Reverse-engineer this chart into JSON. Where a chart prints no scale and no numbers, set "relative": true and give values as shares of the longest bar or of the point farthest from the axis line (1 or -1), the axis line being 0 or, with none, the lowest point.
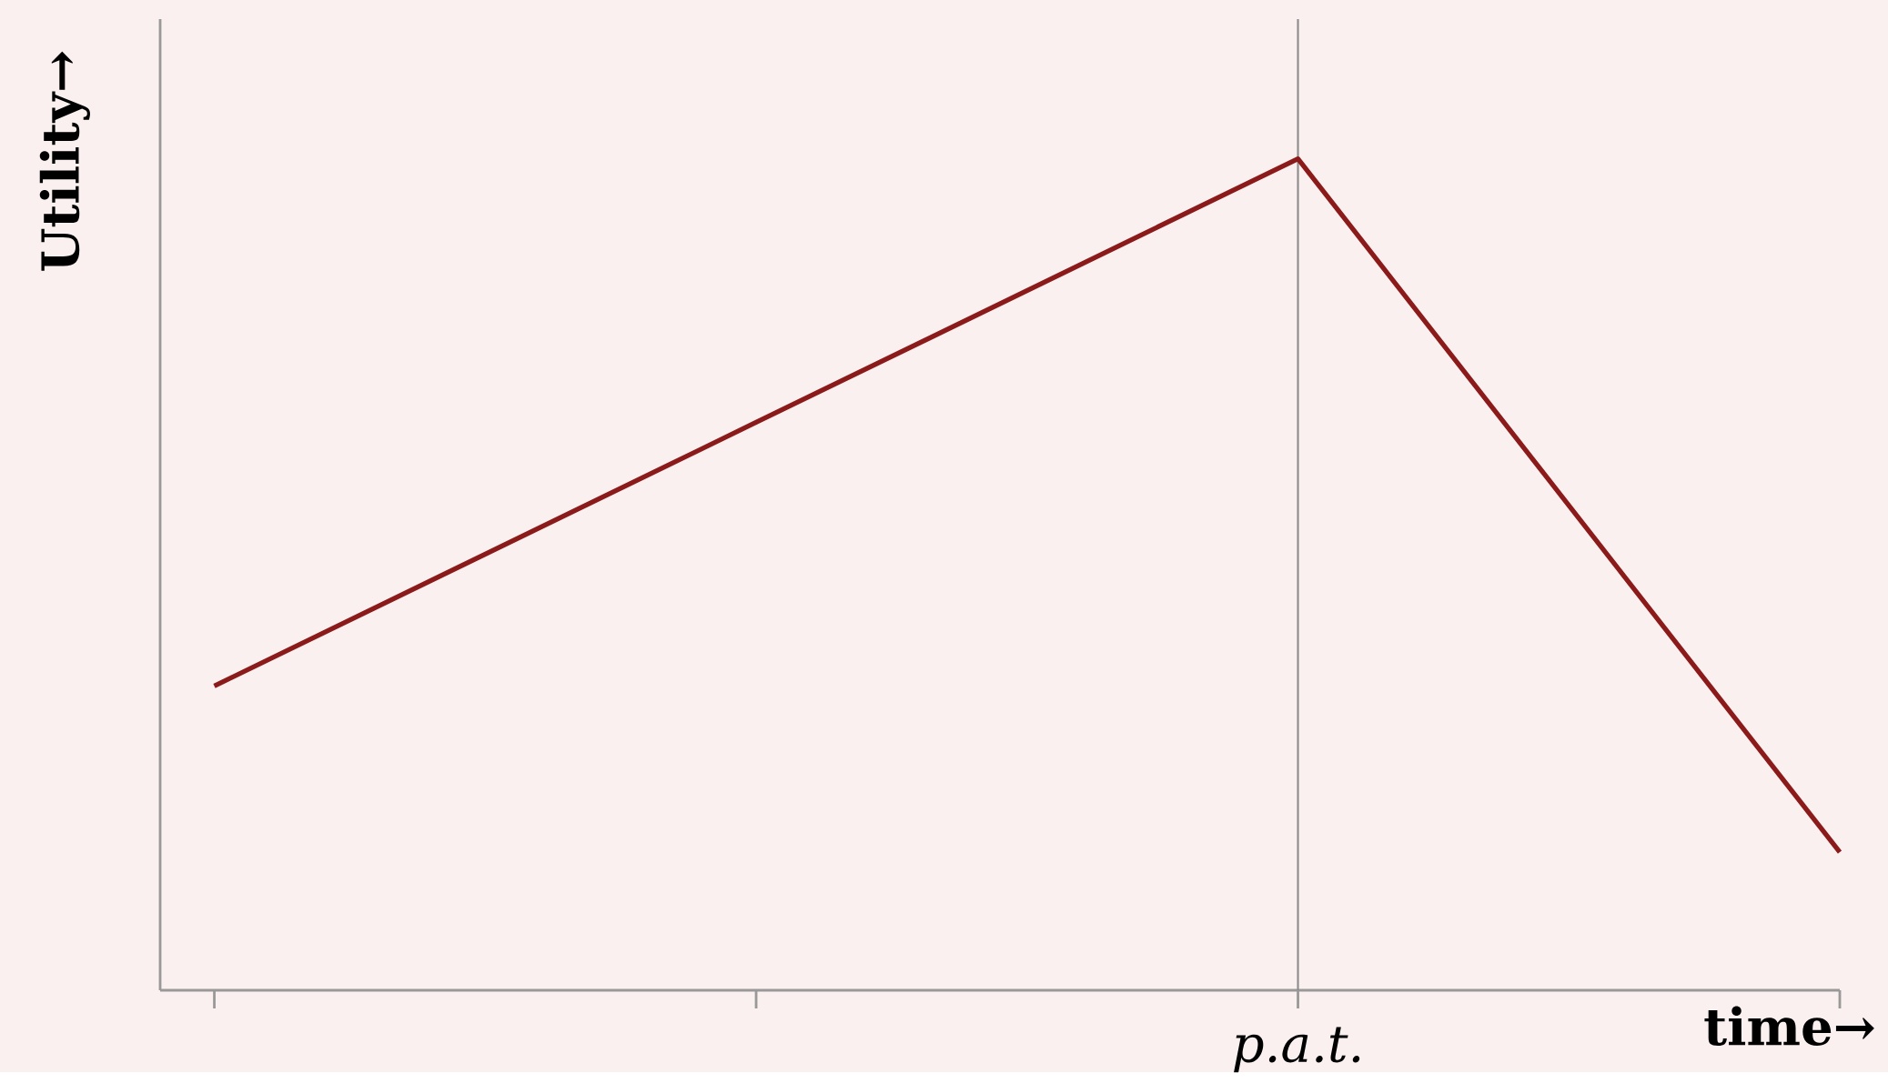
{
  "chart_data": {
    "type": "line",
    "relative": true,
    "xlabel": "time→",
    "ylabel": "Utility→",
    "categories": [
      null,
      null,
      null,
      null
    ],
    "series": [
      {
        "color": "#8b1a1a",
        "values": [
          0.366,
          0.683,
          1,
          0.166
        ]
      }
    ],
    "annotations": [
      "p.a.t."
    ],
    "grid": false,
    "marker": "none",
    "line_style": "solid"
  }
}
